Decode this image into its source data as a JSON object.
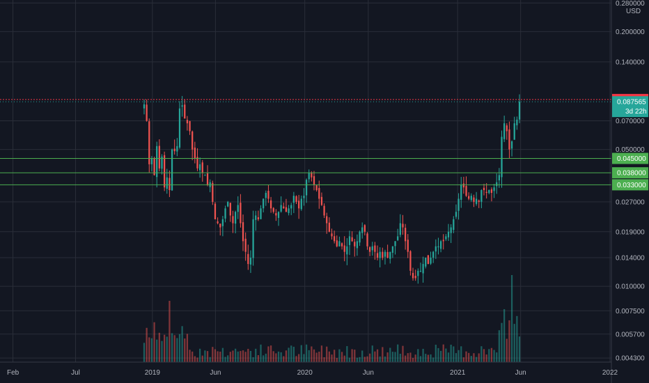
{
  "chart_data": {
    "type": "candlestick",
    "y_scale": "log",
    "ylim": [
      0.0041,
      0.29
    ],
    "currency": "USD",
    "y_ticks": [
      "0.280000",
      "0.200000",
      "0.140000",
      "0.070000",
      "0.050000",
      "0.027000",
      "0.019000",
      "0.014000",
      "0.010000",
      "0.007500",
      "0.005700",
      "0.004300"
    ],
    "x_ticks": [
      "Feb",
      "Jul",
      "2019",
      "Jun",
      "2020",
      "Jun",
      "2021",
      "Jun",
      "2022"
    ],
    "grid": true,
    "levels": [
      {
        "value": 0.09,
        "label": "0.090000",
        "color": "#f23645",
        "style": "dotted"
      },
      {
        "value": 0.045,
        "label": "0.045000",
        "color": "#4caf50",
        "style": "solid"
      },
      {
        "value": 0.038,
        "label": "0.038000",
        "color": "#4caf50",
        "style": "solid"
      },
      {
        "value": 0.033,
        "label": "0.033000",
        "color": "#4caf50",
        "style": "solid"
      }
    ],
    "last_price": {
      "label": "0.087565",
      "countdown": "3d 22h",
      "color": "#26a69a"
    },
    "weekly_closes": [
      0.085,
      0.07,
      0.042,
      0.045,
      0.037,
      0.052,
      0.04,
      0.046,
      0.032,
      0.036,
      0.031,
      0.05,
      0.049,
      0.052,
      0.081,
      0.084,
      0.072,
      0.068,
      0.062,
      0.05,
      0.045,
      0.04,
      0.042,
      0.038,
      0.037,
      0.033,
      0.034,
      0.027,
      0.022,
      0.021,
      0.02,
      0.022,
      0.025,
      0.027,
      0.023,
      0.021,
      0.024,
      0.026,
      0.021,
      0.017,
      0.015,
      0.013,
      0.014,
      0.022,
      0.023,
      0.022,
      0.025,
      0.028,
      0.03,
      0.028,
      0.025,
      0.024,
      0.023,
      0.024,
      0.026,
      0.025,
      0.024,
      0.025,
      0.026,
      0.029,
      0.027,
      0.025,
      0.028,
      0.029,
      0.035,
      0.038,
      0.036,
      0.033,
      0.031,
      0.028,
      0.026,
      0.023,
      0.021,
      0.019,
      0.018,
      0.017,
      0.016,
      0.017,
      0.016,
      0.015,
      0.016,
      0.018,
      0.017,
      0.016,
      0.017,
      0.019,
      0.02,
      0.019,
      0.016,
      0.015,
      0.016,
      0.015,
      0.014,
      0.015,
      0.014,
      0.015,
      0.014,
      0.015,
      0.016,
      0.017,
      0.018,
      0.021,
      0.02,
      0.017,
      0.015,
      0.012,
      0.011,
      0.011,
      0.012,
      0.012,
      0.013,
      0.014,
      0.013,
      0.014,
      0.015,
      0.016,
      0.016,
      0.017,
      0.017,
      0.018,
      0.019,
      0.02,
      0.022,
      0.024,
      0.028,
      0.033,
      0.032,
      0.029,
      0.028,
      0.029,
      0.027,
      0.028,
      0.027,
      0.031,
      0.031,
      0.03,
      0.031,
      0.03,
      0.032,
      0.034,
      0.037,
      0.058,
      0.068,
      0.062,
      0.05,
      0.055,
      0.068,
      0.071,
      0.0876
    ]
  }
}
